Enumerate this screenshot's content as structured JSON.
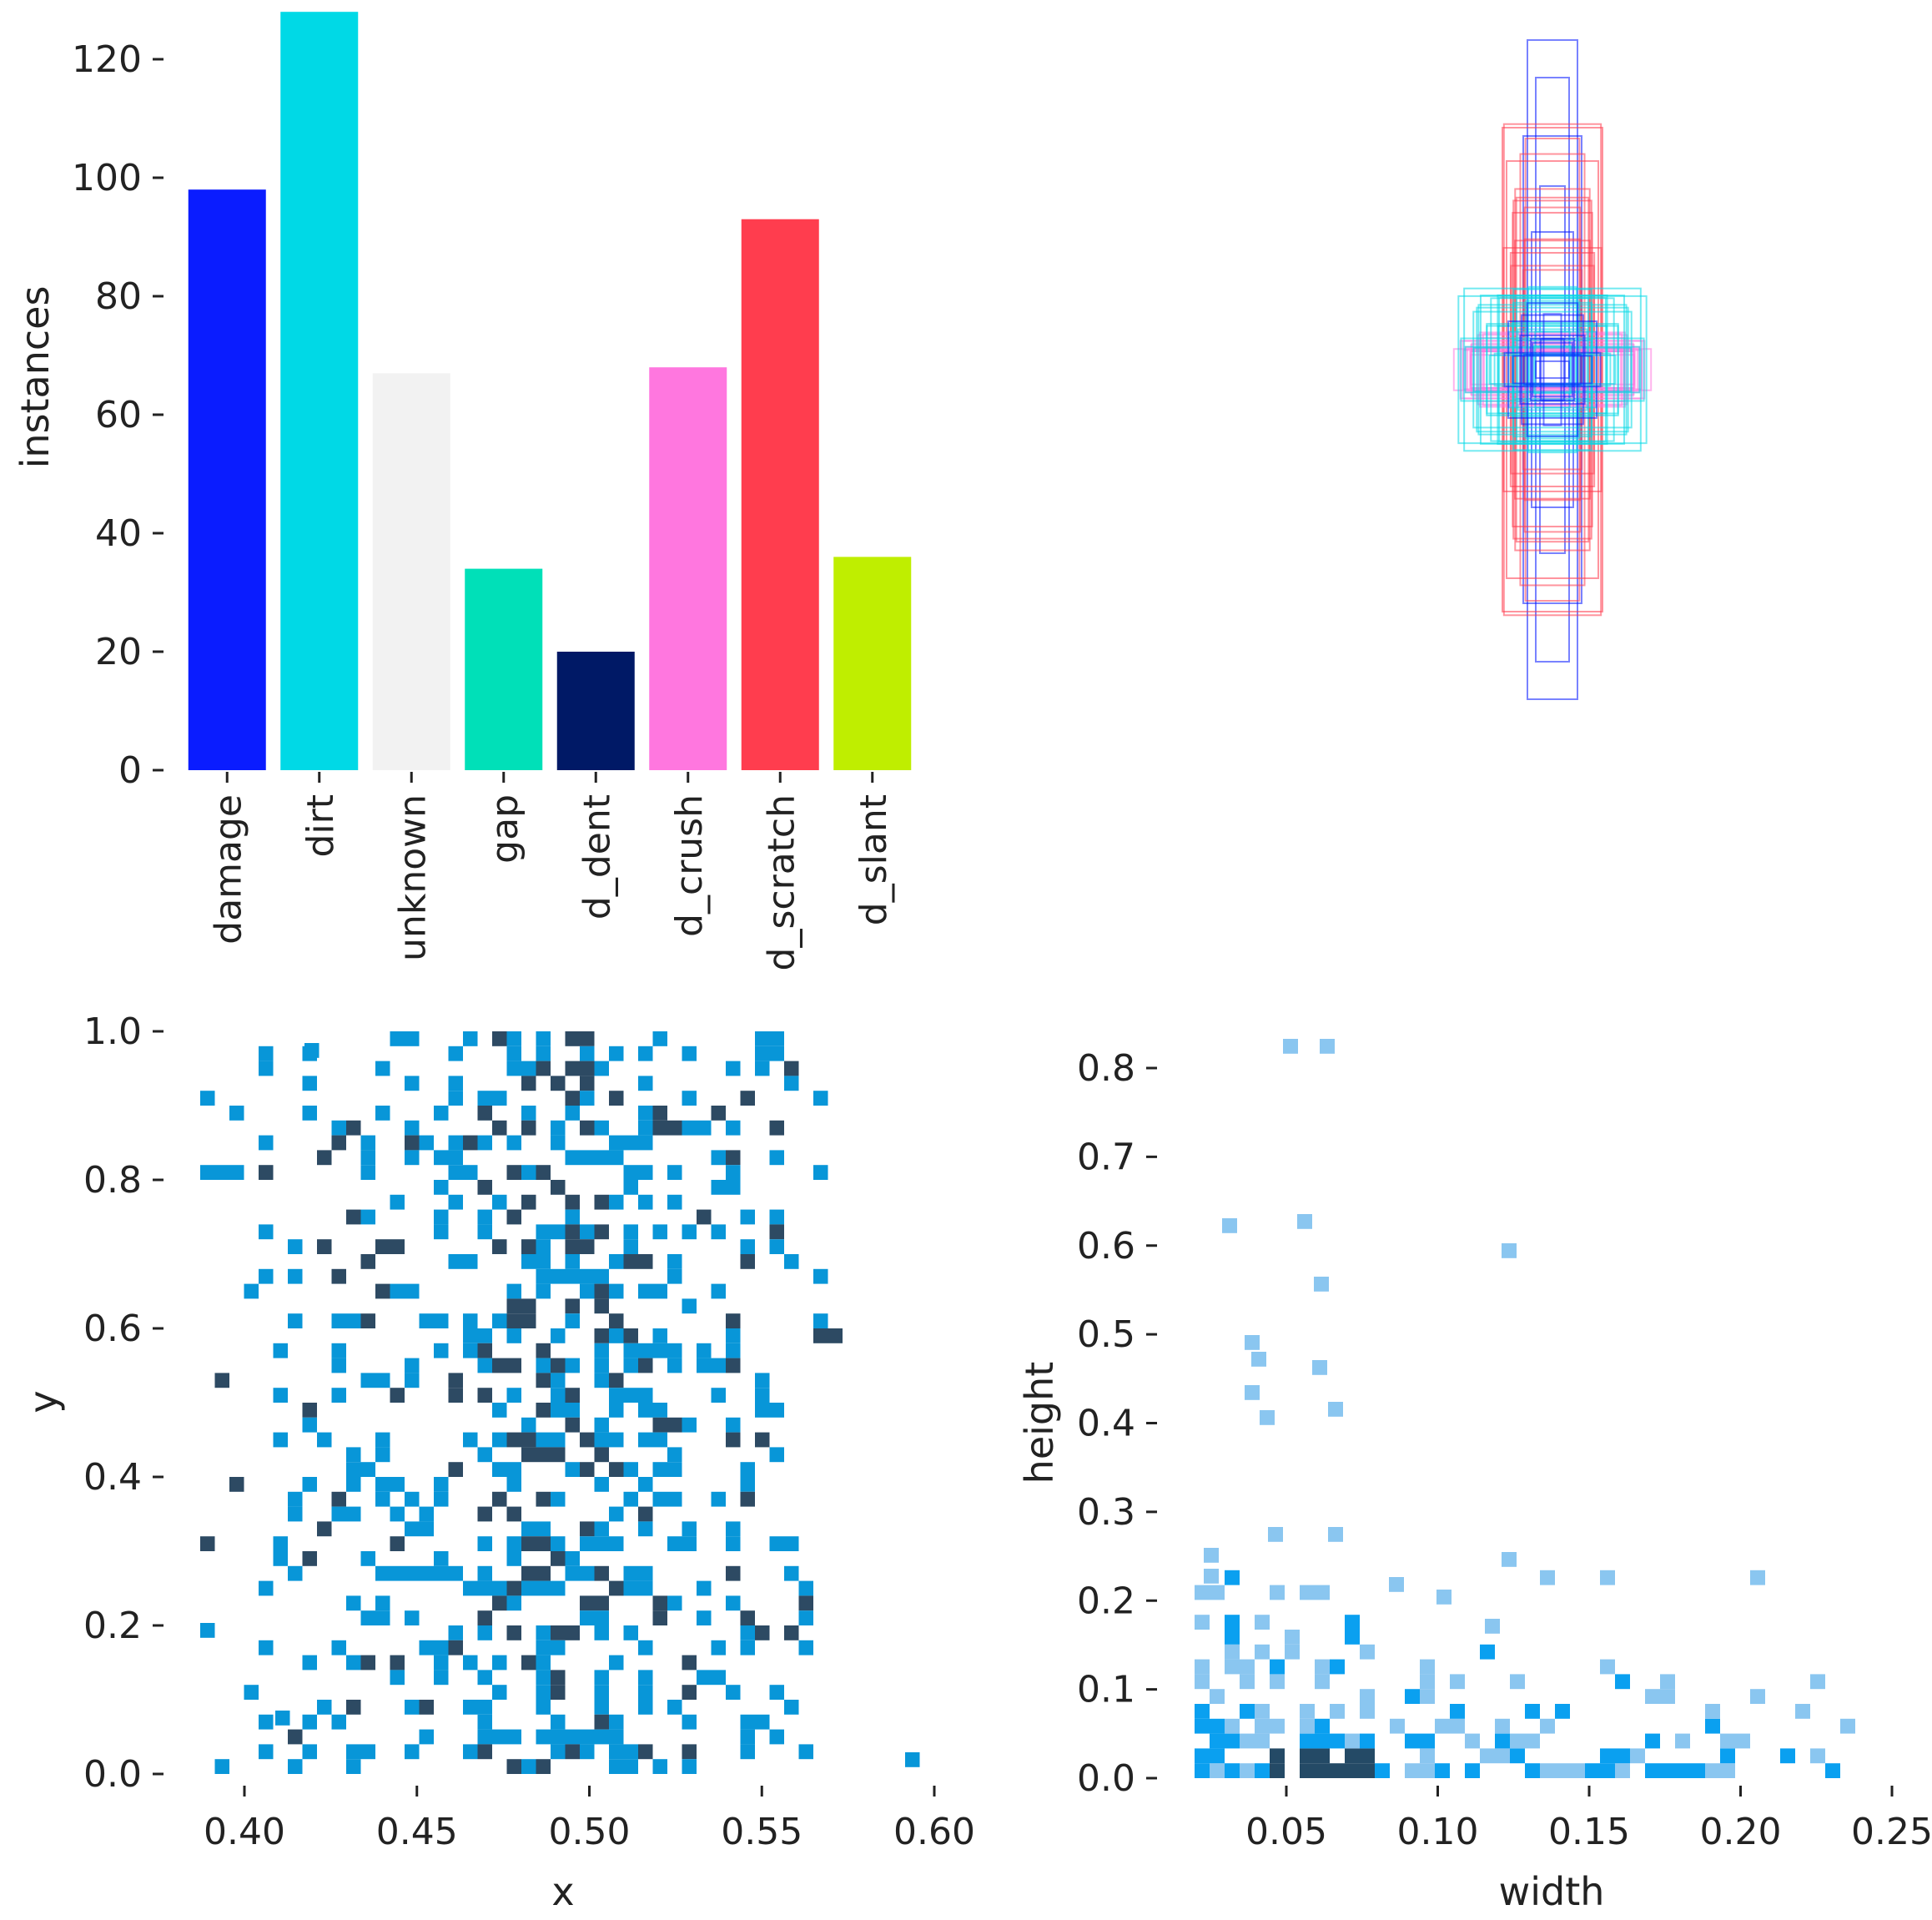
{
  "chart_data": [
    {
      "type": "bar",
      "title": "",
      "xlabel": "",
      "ylabel": "instances",
      "ylim": [
        0,
        128
      ],
      "yticks": [
        0,
        20,
        40,
        60,
        80,
        100,
        120
      ],
      "categories": [
        "damage",
        "dirt",
        "unknown",
        "gap",
        "d_dent",
        "d_crush",
        "d_scratch",
        "d_slant"
      ],
      "values": [
        98,
        128,
        67,
        34,
        20,
        68,
        93,
        36
      ],
      "colors": [
        "#0a1cff",
        "#00d9e6",
        "#f2f2f2",
        "#00e0b8",
        "#001966",
        "#ff77df",
        "#ff3d4e",
        "#bfee00"
      ]
    },
    {
      "type": "box-overlay",
      "title": "",
      "description": "Label box shapes centered on a common origin",
      "colors": [
        "#0a1cff",
        "#00d9e6",
        "#ff77df",
        "#ff3d4e"
      ]
    },
    {
      "type": "heatmap",
      "title": "",
      "xlabel": "x",
      "ylabel": "y",
      "xlim": [
        0.385,
        0.6
      ],
      "ylim": [
        0.0,
        1.0
      ],
      "xticks": [
        "0.40",
        "0.45",
        "0.50",
        "0.55",
        "0.60"
      ],
      "yticks": [
        "0.0",
        "0.2",
        "0.4",
        "0.6",
        "0.8",
        "1.0"
      ],
      "colors": {
        "low": "#0896d8",
        "high": "#2d4a63"
      }
    },
    {
      "type": "heatmap",
      "title": "",
      "xlabel": "width",
      "ylabel": "height",
      "xlim": [
        0.02,
        0.26
      ],
      "ylim": [
        0.0,
        0.83
      ],
      "xticks": [
        "0.05",
        "0.10",
        "0.15",
        "0.20",
        "0.25"
      ],
      "yticks": [
        "0.0",
        "0.1",
        "0.2",
        "0.3",
        "0.4",
        "0.5",
        "0.6",
        "0.7",
        "0.8"
      ],
      "colors": {
        "low": "#8ac6f0",
        "mid": "#0aa0f0",
        "high": "#244a66"
      }
    }
  ]
}
